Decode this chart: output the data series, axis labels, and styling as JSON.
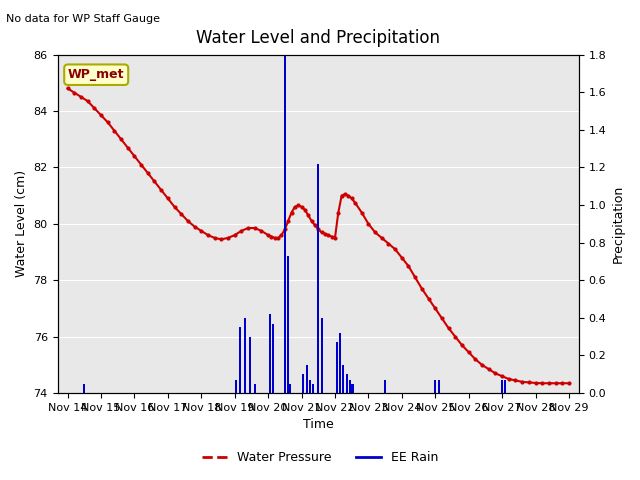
{
  "title": "Water Level and Precipitation",
  "subtitle": "No data for WP Staff Gauge",
  "xlabel": "Time",
  "ylabel_left": "Water Level (cm)",
  "ylabel_right": "Precipitation",
  "legend_label_box": "WP_met",
  "legend_label_line": "Water Pressure",
  "legend_label_bar": "EE Rain",
  "bg_color": "#e8e8e8",
  "ylim_left": [
    74,
    86
  ],
  "ylim_right": [
    0.0,
    1.8
  ],
  "yticks_left": [
    74,
    76,
    78,
    80,
    82,
    84,
    86
  ],
  "yticks_right": [
    0.0,
    0.2,
    0.4,
    0.6,
    0.8,
    1.0,
    1.2,
    1.4,
    1.6,
    1.8
  ],
  "water_level_x": [
    0.0,
    0.2,
    0.4,
    0.6,
    0.8,
    1.0,
    1.2,
    1.4,
    1.6,
    1.8,
    2.0,
    2.2,
    2.4,
    2.6,
    2.8,
    3.0,
    3.2,
    3.4,
    3.6,
    3.8,
    4.0,
    4.2,
    4.4,
    4.6,
    4.8,
    5.0,
    5.2,
    5.4,
    5.6,
    5.8,
    6.0,
    6.1,
    6.2,
    6.3,
    6.4,
    6.5,
    6.6,
    6.7,
    6.8,
    6.9,
    7.0,
    7.1,
    7.2,
    7.3,
    7.4,
    7.5,
    7.6,
    7.7,
    7.8,
    7.9,
    8.0,
    8.1,
    8.2,
    8.3,
    8.4,
    8.5,
    8.6,
    8.8,
    9.0,
    9.2,
    9.4,
    9.6,
    9.8,
    10.0,
    10.2,
    10.4,
    10.6,
    10.8,
    11.0,
    11.2,
    11.4,
    11.6,
    11.8,
    12.0,
    12.2,
    12.4,
    12.6,
    12.8,
    13.0,
    13.2,
    13.4,
    13.6,
    13.8,
    14.0,
    14.2,
    14.4,
    14.6,
    14.8,
    15.0
  ],
  "water_level_y": [
    84.8,
    84.65,
    84.5,
    84.35,
    84.1,
    83.85,
    83.6,
    83.3,
    83.0,
    82.7,
    82.4,
    82.1,
    81.8,
    81.5,
    81.2,
    80.9,
    80.6,
    80.35,
    80.1,
    79.9,
    79.75,
    79.6,
    79.5,
    79.45,
    79.5,
    79.6,
    79.75,
    79.85,
    79.85,
    79.75,
    79.6,
    79.55,
    79.5,
    79.5,
    79.6,
    79.8,
    80.1,
    80.4,
    80.6,
    80.65,
    80.6,
    80.5,
    80.3,
    80.1,
    79.95,
    79.8,
    79.7,
    79.65,
    79.6,
    79.55,
    79.5,
    80.4,
    81.0,
    81.05,
    81.0,
    80.9,
    80.75,
    80.4,
    80.0,
    79.7,
    79.5,
    79.3,
    79.1,
    78.8,
    78.5,
    78.1,
    77.7,
    77.35,
    77.0,
    76.65,
    76.3,
    76.0,
    75.7,
    75.45,
    75.2,
    75.0,
    74.85,
    74.7,
    74.6,
    74.5,
    74.45,
    74.4,
    74.38,
    74.36,
    74.35,
    74.35,
    74.35,
    74.35,
    74.35
  ],
  "rain_x": [
    0.5,
    5.05,
    5.15,
    5.3,
    5.45,
    5.6,
    6.05,
    6.15,
    6.5,
    6.6,
    6.65,
    7.05,
    7.15,
    7.25,
    7.35,
    7.5,
    7.6,
    8.05,
    8.15,
    8.25,
    8.35,
    8.45,
    8.5,
    8.55,
    9.5,
    11.0,
    11.1,
    13.0,
    13.1
  ],
  "rain_y": [
    0.05,
    0.07,
    0.35,
    0.4,
    0.3,
    0.05,
    0.42,
    0.37,
    1.8,
    0.73,
    0.05,
    0.1,
    0.15,
    0.07,
    0.05,
    1.22,
    0.4,
    0.27,
    0.32,
    0.15,
    0.1,
    0.07,
    0.05,
    0.05,
    0.07,
    0.07,
    0.07,
    0.07,
    0.07
  ],
  "line_color": "#cc0000",
  "bar_color": "#0000cc",
  "line_width": 1.5,
  "marker": "o",
  "marker_size": 2,
  "x_ticks": [
    0,
    1,
    2,
    3,
    4,
    5,
    6,
    7,
    8,
    9,
    10,
    11,
    12,
    13,
    14,
    15
  ],
  "x_tick_labels": [
    "Nov 14",
    "Nov 15",
    "Nov 16",
    "Nov 17",
    "Nov 18",
    "Nov 19",
    "Nov 20",
    "Nov 21",
    "Nov 22",
    "Nov 23",
    "Nov 24",
    "Nov 25",
    "Nov 26",
    "Nov 27",
    "Nov 28",
    "Nov 29"
  ]
}
